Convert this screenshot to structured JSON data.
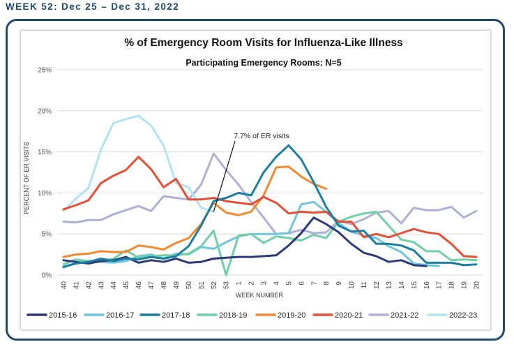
{
  "header": {
    "week_label": "WEEK 52: Dec 25 – Dec 31, 2022"
  },
  "chart_data": {
    "type": "line",
    "title": "% of Emergency Room Visits for Influenza-Like Illness",
    "subtitle": "Participating Emergency Rooms: N=5",
    "xlabel": "WEEK NUMBER",
    "ylabel": "PERCENT OF ER VISITS",
    "ylim": [
      0,
      25
    ],
    "yticks": [
      "0%",
      "5%",
      "10%",
      "15%",
      "20%",
      "25%"
    ],
    "grid": true,
    "legend_position": "bottom",
    "categories": [
      "40",
      "41",
      "42",
      "43",
      "44",
      "45",
      "46",
      "47",
      "48",
      "49",
      "50",
      "51",
      "52",
      "53",
      "1",
      "2",
      "3",
      "4",
      "5",
      "6",
      "7",
      "8",
      "9",
      "10",
      "11",
      "12",
      "13",
      "14",
      "15",
      "16",
      "17",
      "18",
      "19",
      "20"
    ],
    "annotation": {
      "text": "7.7% of ER visits",
      "x": "52",
      "y": 7.7
    },
    "series": [
      {
        "name": "2015-16",
        "color": "#2b3a7a",
        "values": [
          1.8,
          1.6,
          1.4,
          1.7,
          1.8,
          2.2,
          1.5,
          1.8,
          1.6,
          2.0,
          1.5,
          1.6,
          2.0,
          2.1,
          2.2,
          2.2,
          2.3,
          2.4,
          3.6,
          5.1,
          7.0,
          6.2,
          5.2,
          3.8,
          2.7,
          2.3,
          1.6,
          1.8,
          1.2,
          1.1,
          null,
          null,
          null,
          null
        ]
      },
      {
        "name": "2016-17",
        "color": "#6fc7df",
        "values": [
          0.9,
          1.5,
          1.6,
          1.6,
          1.5,
          1.7,
          2.3,
          2.5,
          2.0,
          2.6,
          2.5,
          3.4,
          3.2,
          4.0,
          4.7,
          5.0,
          5.0,
          5.0,
          5.1,
          8.6,
          8.9,
          7.7,
          6.3,
          5.3,
          4.8,
          4.5,
          3.5,
          2.8,
          1.4,
          1.2,
          1.1,
          null,
          null,
          null
        ]
      },
      {
        "name": "2017-18",
        "color": "#1b7fa3",
        "values": [
          1.0,
          1.4,
          1.6,
          2.0,
          1.7,
          2.0,
          1.9,
          2.2,
          2.0,
          2.3,
          3.5,
          6.0,
          9.0,
          9.4,
          10.0,
          9.7,
          12.5,
          14.4,
          15.8,
          14.1,
          11.3,
          8.3,
          6.0,
          5.3,
          5.4,
          3.8,
          3.8,
          3.6,
          3.0,
          1.5,
          1.5,
          1.5,
          1.2,
          1.3
        ]
      },
      {
        "name": "2018-19",
        "color": "#6fd0a8",
        "values": [
          1.3,
          1.9,
          1.7,
          1.7,
          2.0,
          3.0,
          2.1,
          2.3,
          2.4,
          2.4,
          2.6,
          3.5,
          5.4,
          0.0,
          4.8,
          5.0,
          3.9,
          4.7,
          4.5,
          4.2,
          4.9,
          4.5,
          6.5,
          7.1,
          7.5,
          7.7,
          6.0,
          4.3,
          4.0,
          2.9,
          2.9,
          1.8,
          1.9,
          1.8
        ]
      },
      {
        "name": "2019-20",
        "color": "#f2892e",
        "values": [
          2.2,
          2.5,
          2.6,
          2.9,
          2.8,
          2.8,
          3.6,
          3.4,
          3.1,
          3.9,
          4.5,
          6.2,
          8.8,
          7.6,
          7.3,
          7.7,
          9.7,
          13.1,
          13.2,
          12.0,
          11.1,
          10.5,
          null,
          null,
          null,
          null,
          null,
          null,
          null,
          null,
          null,
          null,
          null,
          null
        ]
      },
      {
        "name": "2020-21",
        "color": "#e84e35",
        "values": [
          8.0,
          8.5,
          9.1,
          11.2,
          12.1,
          12.8,
          14.4,
          12.9,
          10.7,
          11.7,
          9.2,
          9.2,
          9.4,
          9.0,
          8.8,
          8.6,
          9.5,
          8.8,
          7.5,
          7.7,
          7.6,
          7.7,
          6.5,
          6.5,
          4.6,
          5.0,
          4.6,
          5.1,
          5.6,
          5.2,
          5.0,
          3.8,
          2.3,
          2.2
        ]
      },
      {
        "name": "2021-22",
        "color": "#aeb0d6",
        "values": [
          6.5,
          6.4,
          6.7,
          6.7,
          7.4,
          7.9,
          8.4,
          7.8,
          9.6,
          9.4,
          9.2,
          11.0,
          14.8,
          12.8,
          11.0,
          8.9,
          7.0,
          5.0,
          5.1,
          5.5,
          5.1,
          5.2,
          6.6,
          6.2,
          6.8,
          7.6,
          7.8,
          6.3,
          8.2,
          7.9,
          7.9,
          8.3,
          7.0,
          7.8
        ]
      },
      {
        "name": "2022-23",
        "color": "#b0e4f2",
        "values": [
          7.8,
          9.3,
          10.6,
          15.3,
          18.5,
          19.0,
          19.4,
          18.2,
          15.8,
          11.2,
          10.7,
          8.2,
          7.7,
          null,
          null,
          null,
          null,
          null,
          null,
          null,
          null,
          null,
          null,
          null,
          null,
          null,
          null,
          null,
          null,
          null,
          null,
          null,
          null,
          null
        ]
      }
    ]
  }
}
